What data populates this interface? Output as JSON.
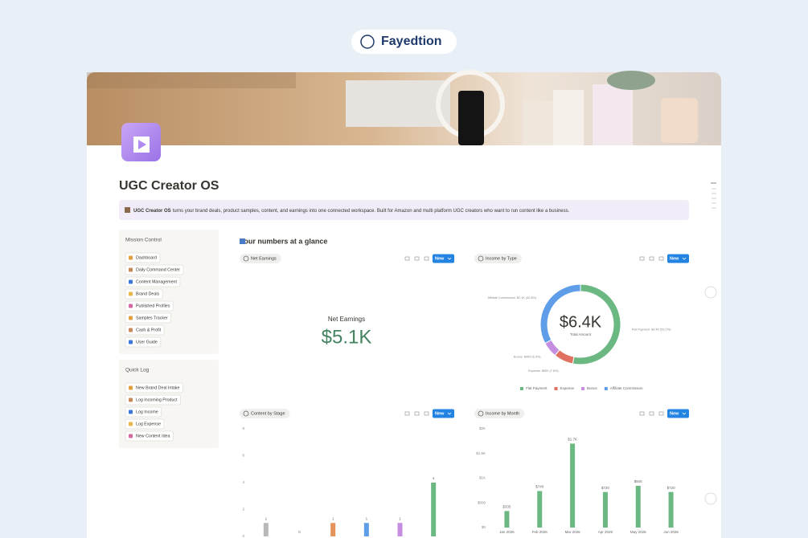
{
  "brand": "Fayedtion",
  "page": {
    "title": "UGC Creator OS",
    "callout": {
      "bold": "UGC Creator OS",
      "text": "turns your brand deals, product samples, content, and earnings into one connected workspace. Built for Amazon and multi platform UGC creators who want to run content like a business."
    }
  },
  "mission_control": {
    "title": "Mission Control",
    "items": [
      "Dashboard",
      "Daily Command Center",
      "Content Management",
      "Brand Deals",
      "Published Profiles",
      "Samples Tracker",
      "Cash & Profit",
      "User Guide"
    ]
  },
  "quick_log": {
    "title": "Quick Log",
    "items": [
      "New Brand Deal Intake",
      "Log Incoming Product",
      "Log Income",
      "Log Expense",
      "New Content Idea"
    ]
  },
  "section_title": "Your numbers at a glance",
  "new_button": "New",
  "chart_data": [
    {
      "type": "number",
      "title": "Net Earnings",
      "label": "Net Earnings",
      "value": 5100,
      "value_label": "$5.1K",
      "color": "#448361"
    },
    {
      "type": "pie",
      "title": "Income by Type",
      "center_label": "$6.4K",
      "center_caption": "Total Amount",
      "categories": [
        "Flat Payment",
        "Expense",
        "Bonus",
        "Affiliate Commission"
      ],
      "values": [
        3400,
        500,
        400,
        2100
      ],
      "value_labels": [
        "$3.4K (53.1%)",
        "$500 (7.8%)",
        "$400 (6.3%)",
        "$2.1K (32.8%)"
      ],
      "colors": [
        "#6cb883",
        "#e0705f",
        "#c58ee0",
        "#5e9ee8"
      ]
    },
    {
      "type": "bar",
      "title": "Content by Stage",
      "categories": [
        null,
        null,
        null,
        null,
        null,
        null
      ],
      "values": [
        1,
        0,
        1,
        1,
        1,
        4
      ],
      "colors": [
        "#b8b8b8",
        "#b8b8b8",
        "#e3935a",
        "#5e9ee8",
        "#c58ee0",
        "#6cb883"
      ],
      "ylim": [
        0,
        8
      ],
      "yticks": [
        0,
        2,
        4,
        6,
        8
      ]
    },
    {
      "type": "bar",
      "title": "Income by Month",
      "categories": [
        "Jan 2026",
        "Feb 2026",
        "Mar 2026",
        "Apr 2026",
        "May 2026",
        "Jun 2026"
      ],
      "values": [
        335,
        740,
        1700,
        720,
        845,
        720
      ],
      "value_labels": [
        "$335",
        "$740",
        "$1.7K",
        "$720",
        "$845",
        "$720"
      ],
      "colors": [
        "#6cb883",
        "#6cb883",
        "#6cb883",
        "#6cb883",
        "#6cb883",
        "#6cb883"
      ],
      "ylim": [
        0,
        2000
      ],
      "yticks": [
        {
          "value": 0,
          "label": "$0"
        },
        {
          "value": 500,
          "label": "$500"
        },
        {
          "value": 1000,
          "label": "$1K"
        },
        {
          "value": 1500,
          "label": "$1.5K"
        },
        {
          "value": 2000,
          "label": "$2K"
        }
      ]
    }
  ]
}
